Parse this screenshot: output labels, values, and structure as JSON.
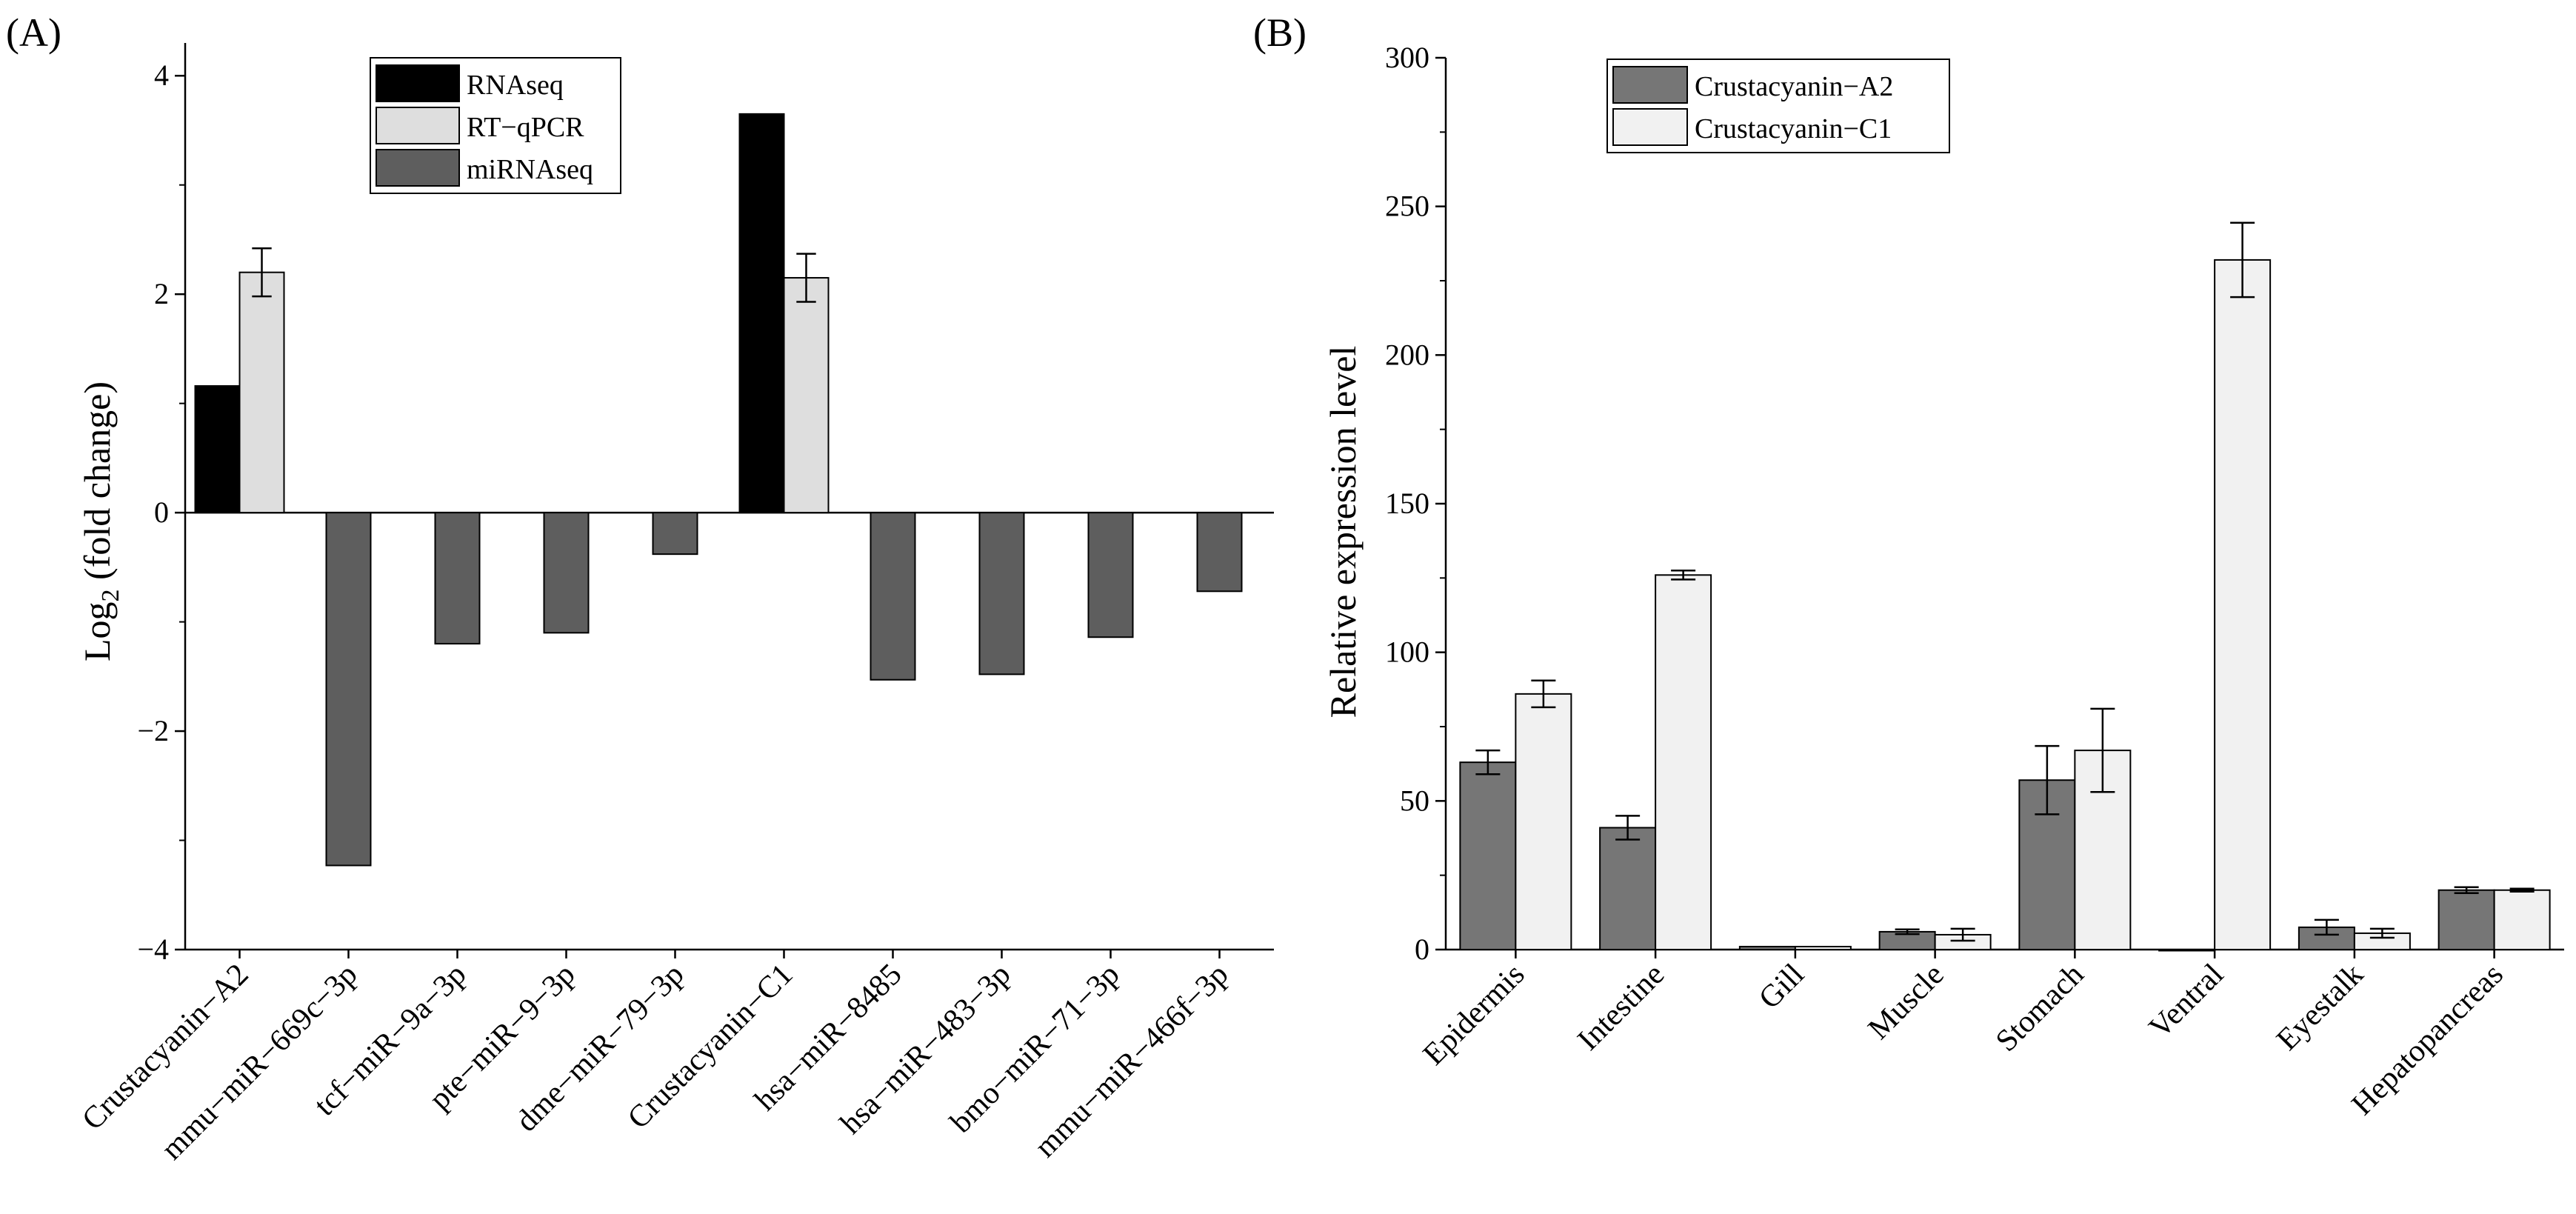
{
  "chart_data": [
    {
      "panel_label": "(A)",
      "type": "bar",
      "ylabel": "Log",
      "ylabel_sub": "2",
      "ylabel_tail": " (fold change)",
      "ylim": [
        -4,
        4.3
      ],
      "yticks": [
        -4,
        -2,
        0,
        2,
        4
      ],
      "ytick_labels": [
        "−4",
        "−2",
        "0",
        "2",
        "4"
      ],
      "categories": [
        "Crustacyanin−A2",
        "mmu−miR−669c−3p",
        "tcf−miR−9a−3p",
        "pte−miR−9−3p",
        "dme−miR−79−3p",
        "Crustacyanin−C1",
        "hsa−miR−8485",
        "hsa−miR−483−3p",
        "bmo−miR−71−3p",
        "mmu−miR−466f−3p"
      ],
      "legend_position": "top-center",
      "series": [
        {
          "name": "RNAseq",
          "color": "#000000",
          "values": [
            1.16,
            null,
            null,
            null,
            null,
            3.65,
            null,
            null,
            null,
            null
          ],
          "errors": [
            null,
            null,
            null,
            null,
            null,
            null,
            null,
            null,
            null,
            null
          ]
        },
        {
          "name": "RT−qPCR",
          "color": "#dedede",
          "values": [
            2.2,
            null,
            null,
            null,
            null,
            2.15,
            null,
            null,
            null,
            null
          ],
          "errors": [
            0.22,
            null,
            null,
            null,
            null,
            0.22,
            null,
            null,
            null,
            null
          ]
        },
        {
          "name": "miRNAseq",
          "color": "#5e5e5e",
          "values": [
            null,
            -3.23,
            -1.2,
            -1.1,
            -0.38,
            null,
            -1.53,
            -1.48,
            -1.14,
            -0.72
          ],
          "errors": [
            null,
            null,
            null,
            null,
            null,
            null,
            null,
            null,
            null,
            null
          ]
        }
      ]
    },
    {
      "panel_label": "(B)",
      "type": "bar",
      "ylabel": "Relative expression level",
      "ylim": [
        0,
        300
      ],
      "yticks": [
        0,
        50,
        100,
        150,
        200,
        250,
        300
      ],
      "ytick_labels": [
        "0",
        "50",
        "100",
        "150",
        "200",
        "250",
        "300"
      ],
      "categories": [
        "Epidermis",
        "Intestine",
        "Gill",
        "Muscle",
        "Stomach",
        "Ventral",
        "Eyestalk",
        "Hepatopancreas"
      ],
      "legend_position": "top-left",
      "series": [
        {
          "name": "Crustacyanin−A2",
          "color": "#767676",
          "values": [
            63,
            41,
            1,
            6,
            57,
            0,
            7.5,
            20
          ],
          "errors": [
            4,
            4,
            null,
            0.8,
            11.5,
            null,
            2.5,
            1
          ]
        },
        {
          "name": "Crustacyanin−C1",
          "color": "#f1f1f1",
          "values": [
            86,
            126,
            1,
            5,
            67,
            232,
            5.5,
            20
          ],
          "errors": [
            4.5,
            1.5,
            null,
            2,
            14,
            12.5,
            1.5,
            0.5
          ]
        }
      ]
    }
  ]
}
